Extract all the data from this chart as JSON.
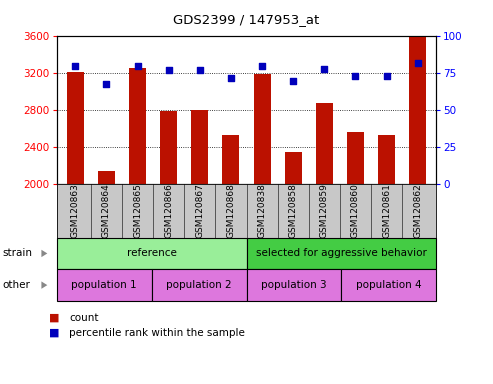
{
  "title": "GDS2399 / 147953_at",
  "samples": [
    "GSM120863",
    "GSM120864",
    "GSM120865",
    "GSM120866",
    "GSM120867",
    "GSM120868",
    "GSM120838",
    "GSM120858",
    "GSM120859",
    "GSM120860",
    "GSM120861",
    "GSM120862"
  ],
  "bar_values": [
    3220,
    2140,
    3255,
    2795,
    2800,
    2530,
    3190,
    2355,
    2880,
    2570,
    2530,
    3590
  ],
  "dot_values": [
    80,
    68,
    80,
    77,
    77,
    72,
    80,
    70,
    78,
    73,
    73,
    82
  ],
  "ylim_left": [
    2000,
    3600
  ],
  "ylim_right": [
    0,
    100
  ],
  "yticks_left": [
    2000,
    2400,
    2800,
    3200,
    3600
  ],
  "yticks_right": [
    0,
    25,
    50,
    75,
    100
  ],
  "bar_color": "#bb1100",
  "dot_color": "#0000bb",
  "strain_groups": [
    {
      "label": "reference",
      "start": 0,
      "end": 6,
      "color": "#99ee99"
    },
    {
      "label": "selected for aggressive behavior",
      "start": 6,
      "end": 12,
      "color": "#44cc44"
    }
  ],
  "other_groups": [
    {
      "label": "population 1",
      "start": 0,
      "end": 3,
      "color": "#dd77dd"
    },
    {
      "label": "population 2",
      "start": 3,
      "end": 6,
      "color": "#dd77dd"
    },
    {
      "label": "population 3",
      "start": 6,
      "end": 9,
      "color": "#dd77dd"
    },
    {
      "label": "population 4",
      "start": 9,
      "end": 12,
      "color": "#dd77dd"
    }
  ],
  "strain_label": "strain",
  "other_label": "other",
  "legend_count_label": "count",
  "legend_pct_label": "percentile rank within the sample",
  "bg_color": "#ffffff",
  "tick_area_color": "#c8c8c8"
}
